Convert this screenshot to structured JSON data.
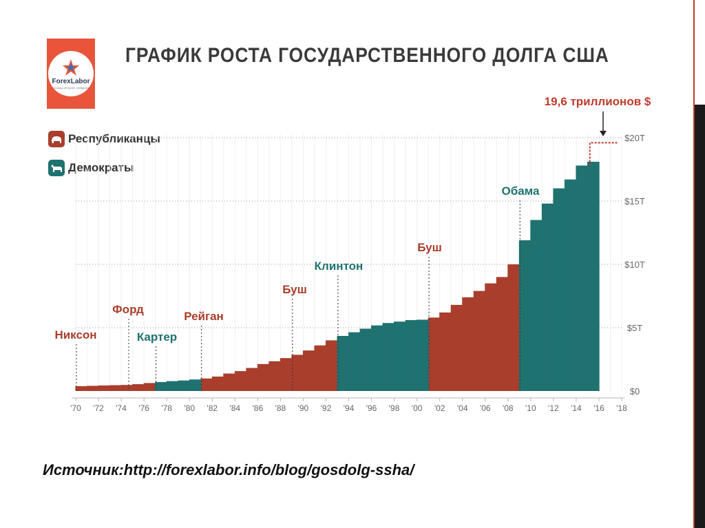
{
  "title": "ГРАФИК РОСТА ГОСУДАРСТВЕННОГО ДОЛГА США",
  "logo": {
    "text": "ForexLabor",
    "subtext": "столица интернет трейдинга"
  },
  "source_text": "Источник:http://forexlabor.info/blog/gosdolg-ssha/",
  "colors": {
    "republican": "#a93e2c",
    "democrat": "#1f7270",
    "annotation": "#c0392b"
  },
  "chart_data": {
    "type": "bar",
    "title": "ГРАФИК РОСТА ГОСУДАРСТВЕННОГО ДОЛГА США",
    "xlabel": "",
    "ylabel": "",
    "xlim": [
      1970,
      2018
    ],
    "ylim": [
      0,
      20
    ],
    "x_tick_labels": [
      "'70",
      "'72",
      "'74",
      "'76",
      "'78",
      "'80",
      "'82",
      "'84",
      "'86",
      "'88",
      "'90",
      "'92",
      "'94",
      "'96",
      "'98",
      "'00",
      "'02",
      "'04",
      "'06",
      "'08",
      "'10",
      "'12",
      "'14",
      "'16",
      "'18"
    ],
    "y_ticks": [
      {
        "value": 0,
        "label": "$0"
      },
      {
        "value": 5,
        "label": "$5T"
      },
      {
        "value": 10,
        "label": "$10T"
      },
      {
        "value": 15,
        "label": "$15T"
      },
      {
        "value": 20,
        "label": "$20T"
      }
    ],
    "legend": [
      {
        "label": "Республиканцы",
        "party": "republican"
      },
      {
        "label": "Демократы",
        "party": "democrat"
      }
    ],
    "legend_position": "top-left",
    "grid": true,
    "series": [
      {
        "name": "Республиканцы",
        "bars": [
          [
            1970,
            0.38
          ],
          [
            1971,
            0.41
          ],
          [
            1972,
            0.44
          ],
          [
            1973,
            0.46
          ],
          [
            1974,
            0.48
          ],
          [
            1975,
            0.54
          ],
          [
            1976,
            0.63
          ],
          [
            1981,
            0.99
          ],
          [
            1982,
            1.14
          ],
          [
            1983,
            1.38
          ],
          [
            1984,
            1.57
          ],
          [
            1985,
            1.82
          ],
          [
            1986,
            2.13
          ],
          [
            1987,
            2.35
          ],
          [
            1988,
            2.6
          ],
          [
            1989,
            2.86
          ],
          [
            1990,
            3.2
          ],
          [
            1991,
            3.6
          ],
          [
            1992,
            4.0
          ],
          [
            2001,
            5.8
          ],
          [
            2002,
            6.2
          ],
          [
            2003,
            6.8
          ],
          [
            2004,
            7.4
          ],
          [
            2005,
            7.9
          ],
          [
            2006,
            8.5
          ],
          [
            2007,
            9.0
          ],
          [
            2008,
            10.0
          ]
        ]
      },
      {
        "name": "Демократы",
        "bars": [
          [
            1977,
            0.71
          ],
          [
            1978,
            0.78
          ],
          [
            1979,
            0.83
          ],
          [
            1980,
            0.91
          ],
          [
            1993,
            4.35
          ],
          [
            1994,
            4.64
          ],
          [
            1995,
            4.92
          ],
          [
            1996,
            5.18
          ],
          [
            1997,
            5.37
          ],
          [
            1998,
            5.48
          ],
          [
            1999,
            5.6
          ],
          [
            2000,
            5.63
          ],
          [
            2009,
            11.9
          ],
          [
            2010,
            13.5
          ],
          [
            2011,
            14.8
          ],
          [
            2012,
            16.0
          ],
          [
            2013,
            16.7
          ],
          [
            2014,
            17.8
          ],
          [
            2015,
            18.1
          ]
        ]
      }
    ],
    "presidents": [
      {
        "name": "Никсон",
        "party": "republican",
        "year": 1970
      },
      {
        "name": "Форд",
        "party": "republican",
        "year": 1974.6
      },
      {
        "name": "Картер",
        "party": "democrat",
        "year": 1977
      },
      {
        "name": "Рейган",
        "party": "republican",
        "year": 1981
      },
      {
        "name": "Буш",
        "party": "republican",
        "year": 1989
      },
      {
        "name": "Клинтон",
        "party": "democrat",
        "year": 1993
      },
      {
        "name": "Буш",
        "party": "republican",
        "year": 2001
      },
      {
        "name": "Обама",
        "party": "democrat",
        "year": 2009
      }
    ],
    "projection": {
      "from_year": 2015.2,
      "to_year": 2017.6,
      "value": 19.6
    },
    "annotations": [
      {
        "text": "19,6 триллионов $",
        "x": 2015.5,
        "y": 19.6
      }
    ]
  }
}
